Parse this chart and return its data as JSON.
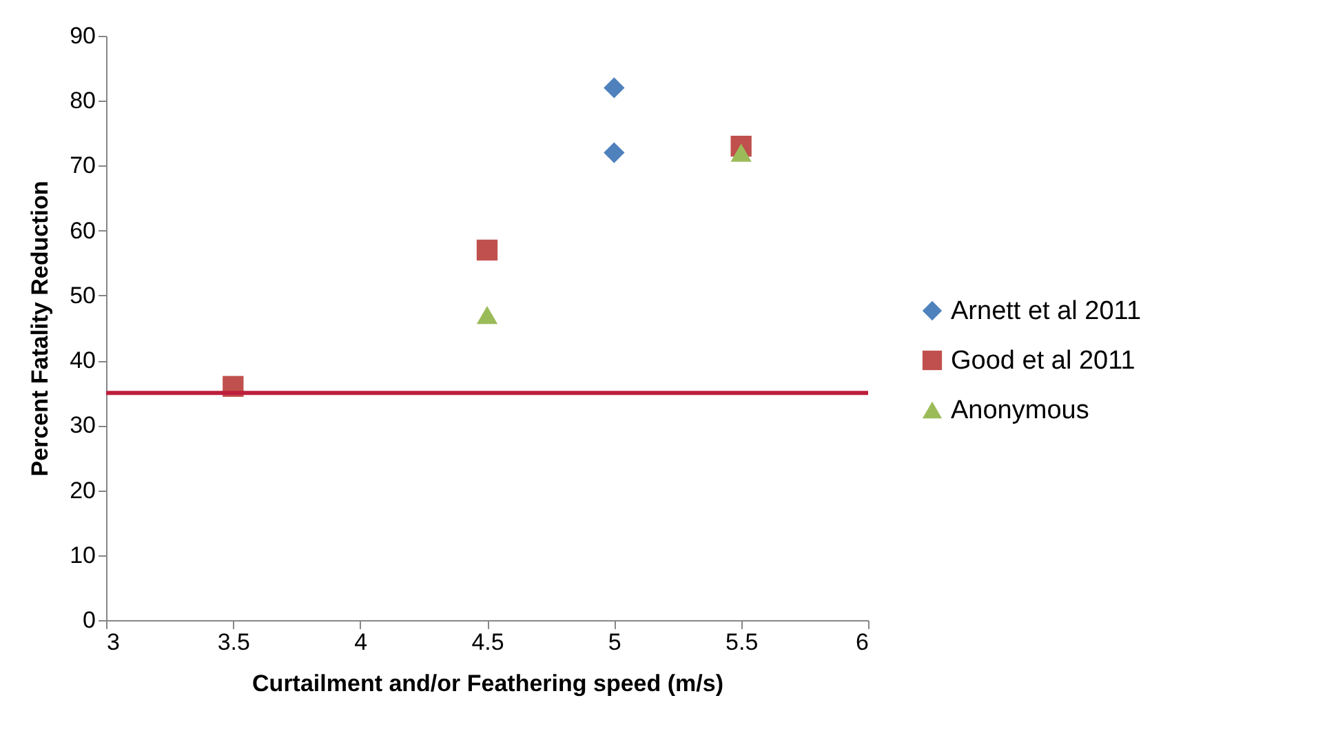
{
  "chart_data": {
    "type": "scatter",
    "xlabel": "Curtailment and/or Feathering speed (m/s)",
    "ylabel": "Percent Fatality Reduction",
    "xlim": [
      3,
      6
    ],
    "xticks": [
      3,
      3.5,
      4,
      4.5,
      5,
      5.5,
      6
    ],
    "ylim": [
      0,
      90
    ],
    "yticks": [
      0,
      10,
      20,
      30,
      40,
      50,
      60,
      70,
      80,
      90
    ],
    "grid": false,
    "legend": "right",
    "series": [
      {
        "name": "Arnett et al 2011",
        "color": "#4f81bd",
        "marker": "diamond",
        "x": [
          5,
          5
        ],
        "values": [
          82,
          72
        ]
      },
      {
        "name": "Good et al 2011",
        "color": "#c0504d",
        "marker": "square",
        "x": [
          3.5,
          4.5,
          5.5
        ],
        "values": [
          36,
          57,
          73
        ]
      },
      {
        "name": "Anonymous",
        "color": "#9bbb59",
        "marker": "triangle",
        "x": [
          4.5,
          5.5
        ],
        "values": [
          47,
          72
        ]
      }
    ],
    "ref_lines": [
      {
        "axis": "y",
        "value": 35,
        "color": "#be1e3c"
      }
    ]
  }
}
